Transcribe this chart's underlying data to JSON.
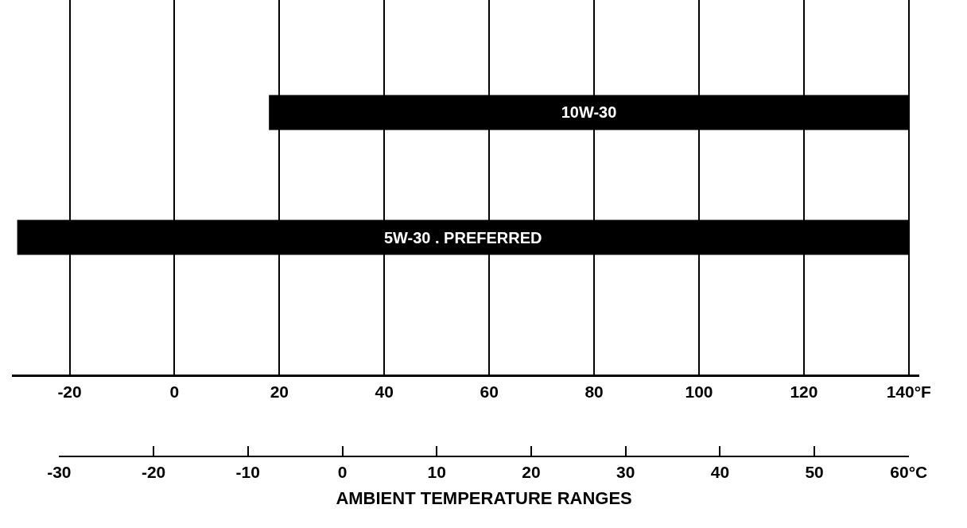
{
  "chart_data": {
    "type": "bar",
    "orientation": "horizontal",
    "categories": [
      null,
      null
    ],
    "series": [
      {
        "name": "10W-30",
        "color": "#000000",
        "values": [
          122,
          null
        ],
        "base": [
          18,
          null
        ]
      },
      {
        "name": "5W-30 . PREFERRED",
        "color": "#000000",
        "values": [
          null,
          170
        ],
        "base": [
          null,
          -30
        ]
      }
    ],
    "xlim": [
      -31,
      142
    ],
    "xticks": [
      -20,
      0,
      20,
      40,
      60,
      80,
      100,
      120,
      {
        "value": 140,
        "label": "140°F"
      }
    ],
    "x2lim": [
      -30,
      60
    ],
    "x2ticks": [
      -30,
      -20,
      -10,
      0,
      10,
      20,
      30,
      40,
      50,
      {
        "value": 60,
        "label": "60°C"
      }
    ],
    "x2label": "AMBIENT TEMPERATURE RANGES",
    "grid": "x",
    "legend": false,
    "tick_labels": "x"
  }
}
